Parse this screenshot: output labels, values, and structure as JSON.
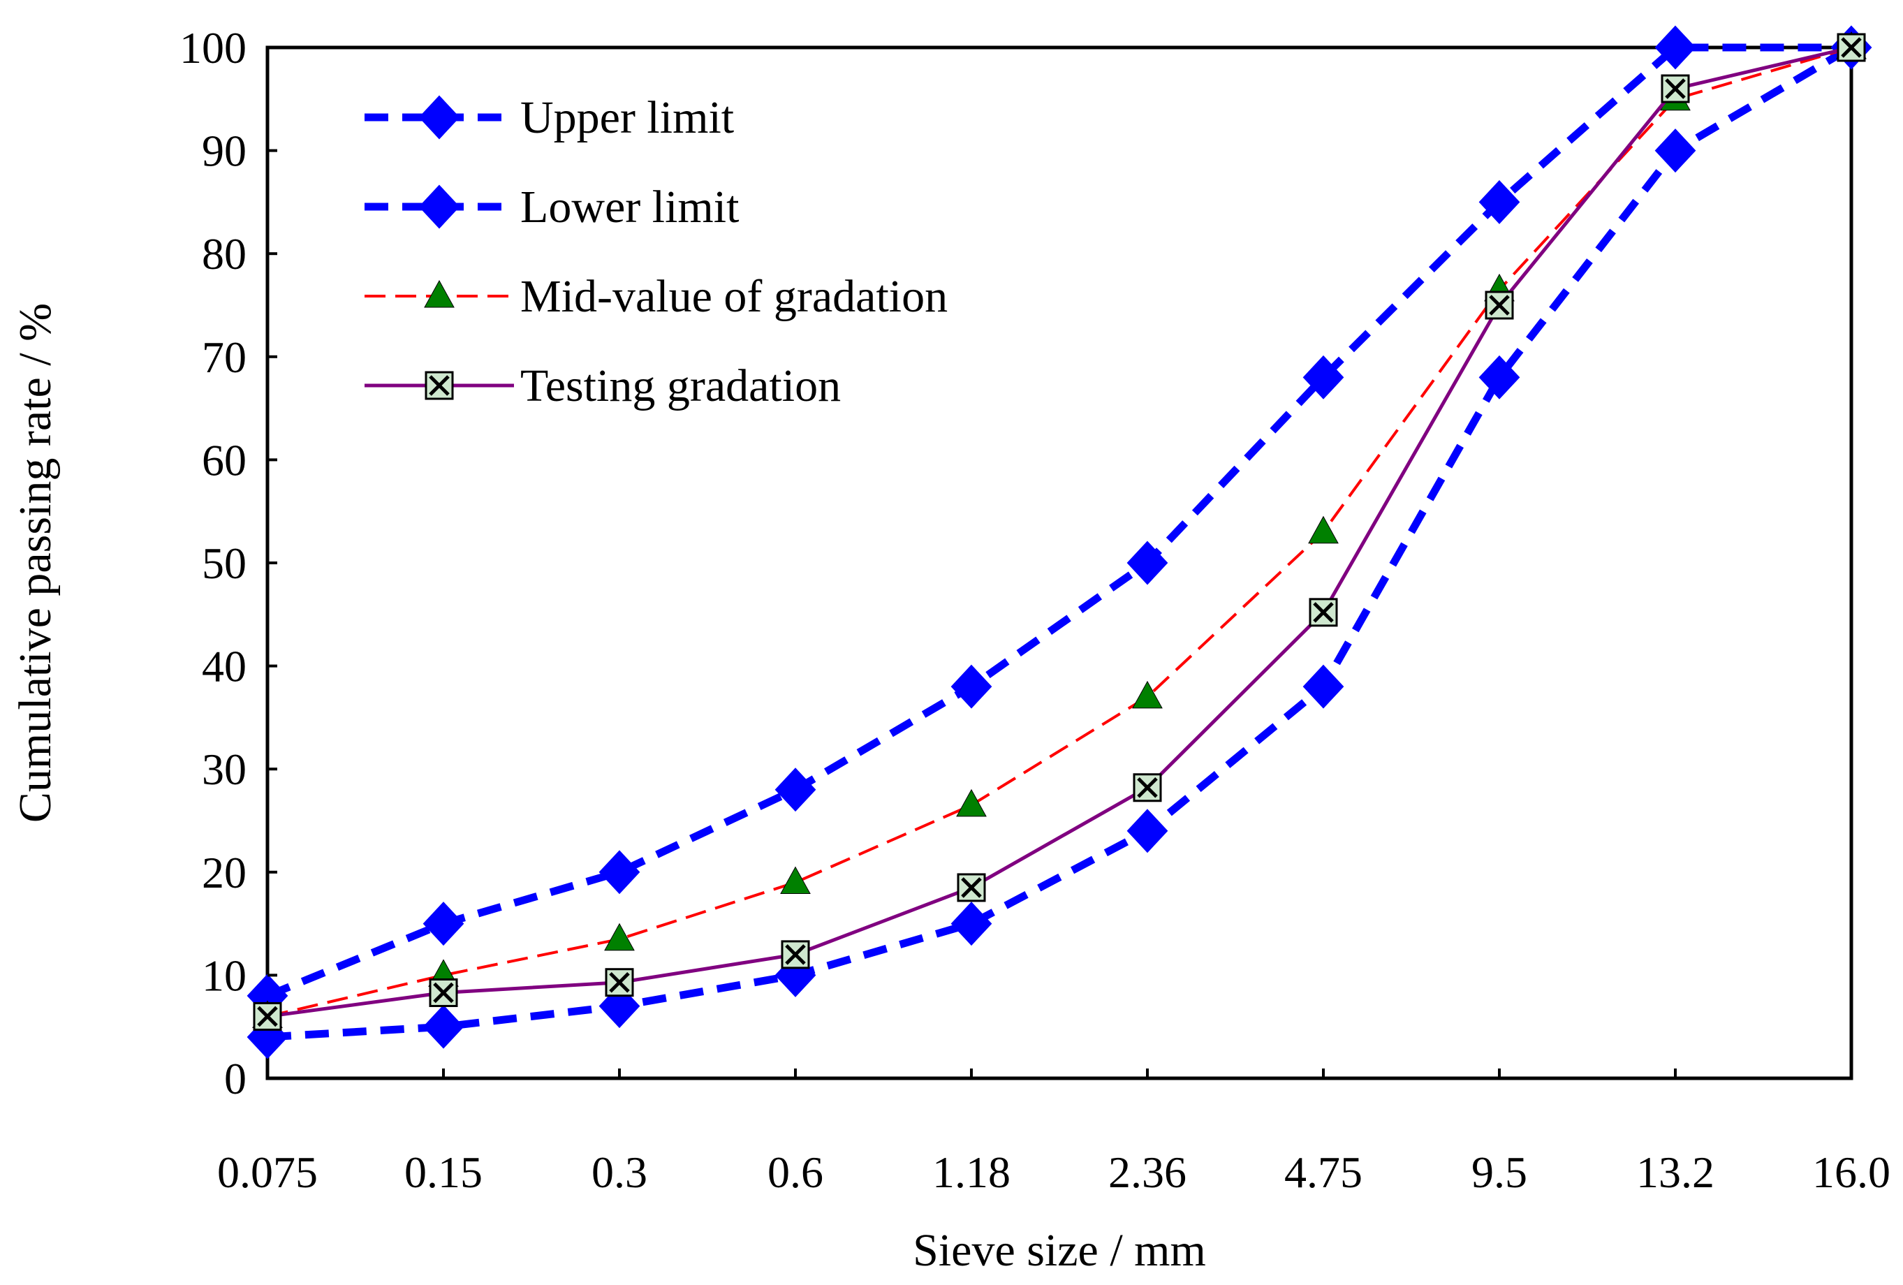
{
  "chart_data": {
    "type": "line",
    "title": "",
    "xlabel": "Sieve size / mm",
    "ylabel": "Cumulative passing rate / %",
    "categories": [
      "0.075",
      "0.15",
      "0.3",
      "0.6",
      "1.18",
      "2.36",
      "4.75",
      "9.5",
      "13.2",
      "16.0"
    ],
    "ylim": [
      0,
      100
    ],
    "yticks": [
      "0",
      "10",
      "20",
      "30",
      "40",
      "50",
      "60",
      "70",
      "80",
      "90",
      "100"
    ],
    "grid": false,
    "legend_position": "top-left",
    "series": [
      {
        "name": "Upper limit",
        "values": [
          8,
          15,
          20,
          28,
          38,
          50,
          68,
          85,
          100,
          100
        ],
        "color": "#0000ff",
        "marker": "diamond",
        "line": "thick-dash"
      },
      {
        "name": "Lower limit",
        "values": [
          4,
          5,
          7,
          10,
          15,
          24,
          38,
          68,
          90,
          100
        ],
        "color": "#0000ff",
        "marker": "diamond",
        "line": "thick-dash"
      },
      {
        "name": "Mid-value of gradation",
        "values": [
          6,
          10,
          13.5,
          19,
          26.5,
          37,
          53,
          76.5,
          95,
          100
        ],
        "color": "#ff0000",
        "marker_color": "#008000",
        "marker": "triangle",
        "line": "dash"
      },
      {
        "name": "Testing gradation",
        "values": [
          6,
          8.3,
          9.3,
          12,
          18.5,
          28.2,
          45.2,
          75,
          96,
          100
        ],
        "color": "#800080",
        "marker": "boxed-x",
        "line": "solid"
      }
    ]
  }
}
